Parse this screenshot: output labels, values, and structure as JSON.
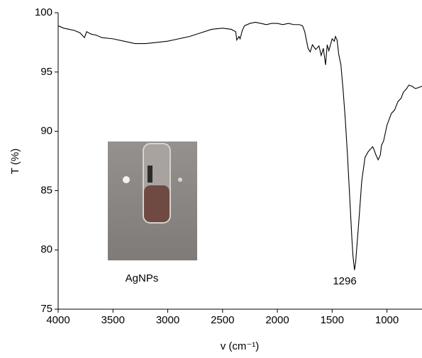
{
  "chart_data": {
    "type": "line",
    "x_label": "v (cm⁻¹)",
    "y_label": "T (%)",
    "x": [
      4000,
      3950,
      3900,
      3850,
      3800,
      3760,
      3740,
      3700,
      3650,
      3600,
      3500,
      3400,
      3300,
      3200,
      3100,
      3000,
      2900,
      2800,
      2700,
      2600,
      2500,
      2420,
      2380,
      2370,
      2350,
      2340,
      2320,
      2300,
      2250,
      2200,
      2150,
      2100,
      2050,
      2000,
      1950,
      1900,
      1850,
      1800,
      1770,
      1750,
      1720,
      1700,
      1680,
      1650,
      1620,
      1600,
      1580,
      1560,
      1545,
      1530,
      1500,
      1480,
      1470,
      1455,
      1440,
      1420,
      1400,
      1380,
      1360,
      1340,
      1320,
      1310,
      1296,
      1285,
      1270,
      1250,
      1230,
      1200,
      1170,
      1150,
      1130,
      1120,
      1100,
      1080,
      1060,
      1050,
      1030,
      1000,
      980,
      960,
      930,
      900,
      870,
      850,
      820,
      800,
      770,
      740,
      710,
      680
    ],
    "series": [
      {
        "name": "AgNPs",
        "color": "#000000",
        "values": [
          98.9,
          98.7,
          98.6,
          98.5,
          98.3,
          97.9,
          98.4,
          98.2,
          98.1,
          97.9,
          97.8,
          97.6,
          97.4,
          97.4,
          97.5,
          97.6,
          97.8,
          98.0,
          98.3,
          98.6,
          98.7,
          98.6,
          98.4,
          97.7,
          98.0,
          97.8,
          98.5,
          98.9,
          99.1,
          99.2,
          99.1,
          99.0,
          99.1,
          99.1,
          99.0,
          99.1,
          99.0,
          99.0,
          98.9,
          98.4,
          97.0,
          96.7,
          97.3,
          96.9,
          97.2,
          96.4,
          97.0,
          95.6,
          97.3,
          96.8,
          97.8,
          97.6,
          98.0,
          97.7,
          96.5,
          95.6,
          93.5,
          91.0,
          88.0,
          84.5,
          81.0,
          79.5,
          78.3,
          79.0,
          80.8,
          83.2,
          85.8,
          87.8,
          88.3,
          88.5,
          88.7,
          88.5,
          88.0,
          87.6,
          88.0,
          88.8,
          89.2,
          90.5,
          91.0,
          91.5,
          91.8,
          92.5,
          92.8,
          93.3,
          93.6,
          93.9,
          93.8,
          93.6,
          93.7,
          93.8
        ]
      }
    ],
    "xlim": [
      4000,
      680
    ],
    "ylim": [
      75,
      100
    ],
    "xticks": [
      4000,
      3500,
      3000,
      2500,
      2000,
      1500,
      1000
    ],
    "yticks": [
      75,
      80,
      85,
      90,
      95,
      100
    ],
    "annotations": [
      "1296",
      "AgNPs"
    ]
  }
}
